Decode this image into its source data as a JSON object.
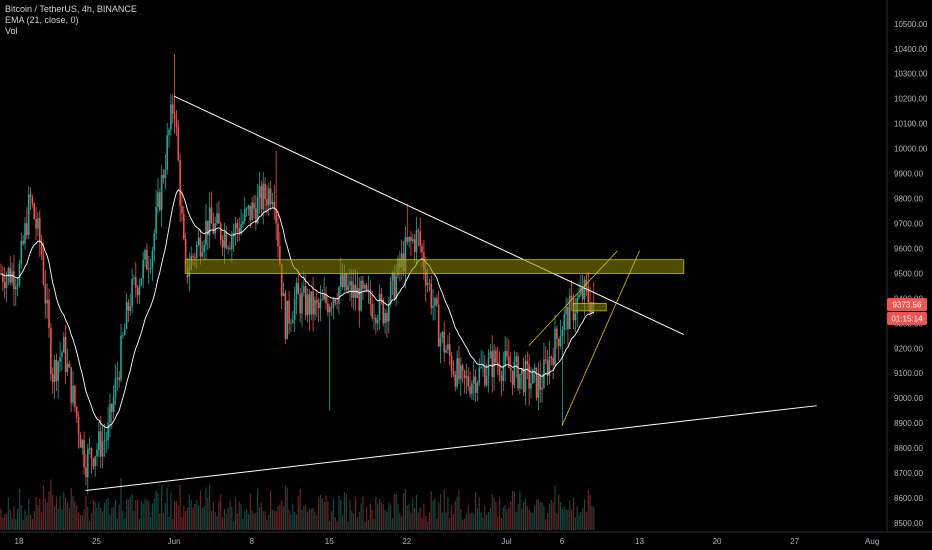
{
  "legend": {
    "symbol_line": "Bitcoin / TetherUS, 4h, BINANCE",
    "ema_line": "EMA (21, close, 0)",
    "vol_line": "Vol"
  },
  "price_tag": {
    "value": "9373.56",
    "countdown": "01:15:14",
    "color": "#ef5350"
  },
  "chart_data": {
    "type": "candlestick",
    "y_axis": {
      "ticks": [
        "8500.00",
        "8600.00",
        "8700.00",
        "8800.00",
        "8900.00",
        "9000.00",
        "9100.00",
        "9200.00",
        "9300.00",
        "9400.00",
        "9500.00",
        "9600.00",
        "9700.00",
        "9800.00",
        "9900.00",
        "10000.00",
        "10100.00",
        "10200.00",
        "10300.00",
        "10400.00",
        "10500.00"
      ],
      "range": [
        8480,
        10540
      ]
    },
    "x_axis": {
      "ticks": [
        "18",
        "25",
        "Jun",
        "8",
        "15",
        "22",
        "Jul",
        "6",
        "13",
        "20",
        "27",
        "Aug"
      ]
    },
    "colors": {
      "up": "#26a69a",
      "down": "#ef5350",
      "ema": "#ffffff",
      "zone": "#8c8a00",
      "trendline": "#ffffff",
      "channel": "#d4c400"
    },
    "price_path": [
      {
        "date": "May 18",
        "price": 9500
      },
      {
        "date": "May 19",
        "price": 9800
      },
      {
        "date": "May 20",
        "price": 9600
      },
      {
        "date": "May 21",
        "price": 9100
      },
      {
        "date": "May 22",
        "price": 9200
      },
      {
        "date": "May 24",
        "price": 8750
      },
      {
        "date": "May 26",
        "price": 8850
      },
      {
        "date": "May 28",
        "price": 9400
      },
      {
        "date": "May 30",
        "price": 9600
      },
      {
        "date": "Jun 1",
        "price": 10200
      },
      {
        "date": "Jun 2",
        "price": 9500
      },
      {
        "date": "Jun 4",
        "price": 9700
      },
      {
        "date": "Jun 6",
        "price": 9650
      },
      {
        "date": "Jun 8",
        "price": 9750
      },
      {
        "date": "Jun 10",
        "price": 9850
      },
      {
        "date": "Jun 11",
        "price": 9300
      },
      {
        "date": "Jun 12",
        "price": 9400
      },
      {
        "date": "Jun 14",
        "price": 9350
      },
      {
        "date": "Jun 16",
        "price": 9450
      },
      {
        "date": "Jun 18",
        "price": 9400
      },
      {
        "date": "Jun 20",
        "price": 9350
      },
      {
        "date": "Jun 22",
        "price": 9600
      },
      {
        "date": "Jun 23",
        "price": 9650
      },
      {
        "date": "Jun 25",
        "price": 9250
      },
      {
        "date": "Jun 27",
        "price": 9050
      },
      {
        "date": "Jun 30",
        "price": 9150
      },
      {
        "date": "Jul 2",
        "price": 9100
      },
      {
        "date": "Jul 4",
        "price": 9050
      },
      {
        "date": "Jul 6",
        "price": 9300
      },
      {
        "date": "Jul 8",
        "price": 9420
      },
      {
        "date": "Jul 9",
        "price": 9373.56
      }
    ],
    "ema": {
      "period": 21
    },
    "volume": {
      "shown": true
    },
    "drawings": [
      {
        "kind": "trendline",
        "from": {
          "date": "Jun 1",
          "price": 10210
        },
        "to": {
          "date": "Jul 17",
          "price": 9255
        }
      },
      {
        "kind": "trendline",
        "from": {
          "date": "May 24",
          "price": 8630
        },
        "to": {
          "date": "Jul 29",
          "price": 8970
        }
      },
      {
        "kind": "zone",
        "from": {
          "date": "Jun 2",
          "price": 9500
        },
        "to": {
          "date": "Jul 17",
          "price": 9555
        }
      },
      {
        "kind": "zone",
        "from": {
          "date": "Jul 7",
          "price": 9350
        },
        "to": {
          "date": "Jul 10",
          "price": 9380
        }
      },
      {
        "kind": "channel_line",
        "from": {
          "date": "Jul 6",
          "price": 8890
        },
        "to": {
          "date": "Jul 13",
          "price": 9590
        }
      },
      {
        "kind": "channel_line",
        "from": {
          "date": "Jul 3",
          "price": 9210
        },
        "to": {
          "date": "Jul 11",
          "price": 9590
        }
      }
    ]
  }
}
